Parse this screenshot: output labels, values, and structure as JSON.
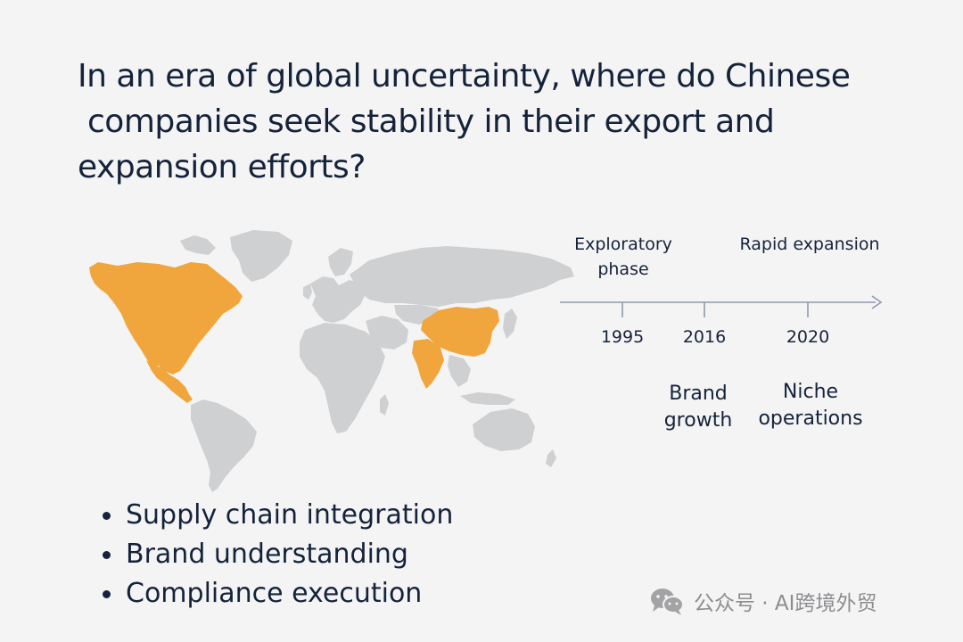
{
  "title": {
    "lines": [
      "In an era of global uncertainty, where do Chinese",
      "companies seek stability in their export and",
      "expansion efforts?"
    ]
  },
  "timeline": {
    "phases": [
      "Exploratory\nphase",
      "Rapid expansion"
    ],
    "years": [
      "1995",
      "2016",
      "2020"
    ],
    "stages": [
      "Brand\ngrowth",
      "Niche\noperations"
    ]
  },
  "map": {
    "highlighted_regions": [
      "North America",
      "China",
      "India"
    ],
    "highlight_color": "#f0a63c",
    "base_color": "#cfd0d2"
  },
  "bullets": [
    "Supply chain integration",
    "Brand understanding",
    "Compliance execution"
  ],
  "watermark": {
    "text": "公众号 · AI跨境外贸",
    "icon": "wechat-icon"
  }
}
